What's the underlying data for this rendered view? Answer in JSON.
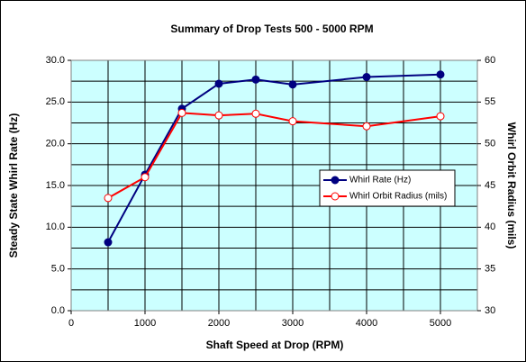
{
  "chart_data": {
    "type": "line",
    "title": "Summary of Drop Tests 500 - 5000 RPM",
    "x_label": "Shaft Speed at Drop (RPM)",
    "y_label": "Steady State Whirl Rate (Hz)",
    "y2_label": "Whirl Orbit Radius (mils)",
    "x": [
      500,
      1000,
      1500,
      2000,
      2500,
      3000,
      4000,
      5000
    ],
    "series": [
      {
        "name": "Whirl Rate (Hz)",
        "color": "#000080",
        "marker": "filled",
        "values": [
          8.2,
          16.3,
          24.2,
          27.2,
          27.7,
          27.1,
          28.0,
          28.3
        ]
      },
      {
        "name": "Whirl Orbit Radius (mils)",
        "color": "#ff0000",
        "marker": "open",
        "axis": "y2",
        "values": [
          43.5,
          46.0,
          53.7,
          53.4,
          53.6,
          52.7,
          52.1,
          53.3
        ]
      }
    ],
    "xlim": [
      0,
      5500
    ],
    "xticks": [
      0,
      1000,
      2000,
      3000,
      4000,
      5000
    ],
    "x_grid": [
      500,
      1000,
      1500,
      2000,
      2500,
      3000,
      3500,
      4000,
      4500,
      5000
    ],
    "ylim": [
      0,
      30
    ],
    "yticks": [
      {
        "value": 0,
        "label": "0.0"
      },
      {
        "value": 5,
        "label": "5.0"
      },
      {
        "value": 10,
        "label": "10.0"
      },
      {
        "value": 15,
        "label": "15.0"
      },
      {
        "value": 20,
        "label": "20.0"
      },
      {
        "value": 25,
        "label": "25.0"
      },
      {
        "value": 30,
        "label": "30.0"
      }
    ],
    "y_grid": [
      2.5,
      5,
      7.5,
      10,
      12.5,
      15,
      17.5,
      20,
      22.5,
      25,
      27.5
    ],
    "y2lim": [
      30,
      60
    ],
    "y2ticks": [
      30,
      35,
      40,
      45,
      50,
      55,
      60
    ],
    "plot_background": "#ccffff",
    "legend": "center right"
  }
}
